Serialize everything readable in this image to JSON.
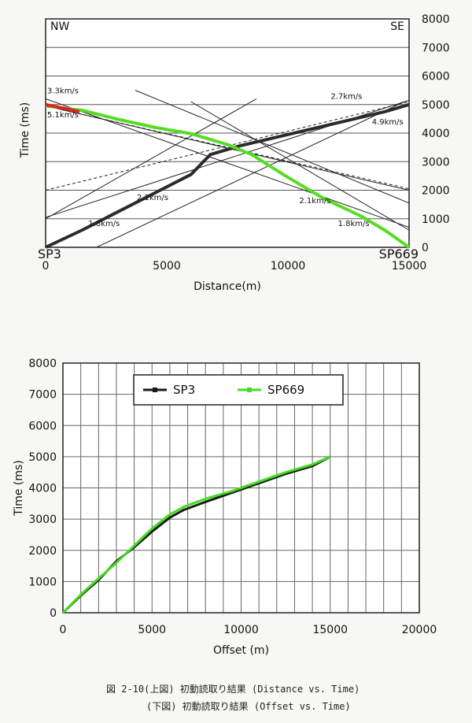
{
  "chart_data": [
    {
      "type": "line",
      "title": "",
      "xlabel": "Distance(m)",
      "ylabel": "Time (ms)",
      "xlim": [
        0,
        15000
      ],
      "ylim": [
        0,
        8000
      ],
      "x_ticks": [
        "0",
        "5000",
        "10000",
        "15000"
      ],
      "y_ticks_right": [
        "0",
        "1000",
        "2000",
        "3000",
        "4000",
        "5000",
        "6000",
        "7000",
        "8000"
      ],
      "corner_labels": {
        "top_left": "NW",
        "top_right": "SE"
      },
      "shot_labels": {
        "left": "SP3",
        "right": "SP669"
      },
      "grid": "horizontal",
      "series": [
        {
          "name": "SP3",
          "color": "#2b2b2b",
          "x": [
            0,
            1500,
            3000,
            4500,
            6000,
            6800,
            8000,
            9500,
            11000,
            12500,
            14000,
            15000
          ],
          "y": [
            0,
            600,
            1250,
            1900,
            2550,
            3250,
            3550,
            3850,
            4150,
            4450,
            4750,
            5000
          ]
        },
        {
          "name": "SP669",
          "color": "#55dd22",
          "x": [
            0,
            1500,
            3000,
            4500,
            6000,
            7500,
            8500,
            10000,
            11500,
            13000,
            14000,
            15000
          ],
          "y": [
            4950,
            4800,
            4480,
            4200,
            3980,
            3600,
            3250,
            2450,
            1700,
            1100,
            600,
            0
          ]
        },
        {
          "name": "SP669 (red segment)",
          "color": "#dd2222",
          "x": [
            0,
            1400
          ],
          "y": [
            5000,
            4750
          ]
        }
      ],
      "velocity_lines": [
        {
          "label": "3.3km/s",
          "style": "solid",
          "x": [
            0,
            15000
          ],
          "y": [
            5200,
            700
          ]
        },
        {
          "label": "5.1km/s",
          "style": "solid",
          "x": [
            0,
            15000
          ],
          "y": [
            4950,
            2000
          ]
        },
        {
          "label": "2.7km/s",
          "style": "solid",
          "x": [
            0,
            15000
          ],
          "y": [
            1050,
            5150
          ]
        },
        {
          "label": "4.9km/s",
          "style": "dashed",
          "x": [
            0,
            15000
          ],
          "y": [
            2000,
            5100
          ]
        },
        {
          "label": "2.1km/s",
          "style": "solid",
          "x": [
            3700,
            15000
          ],
          "y": [
            5500,
            1550
          ]
        },
        {
          "label": "2.1km/s",
          "style": "solid",
          "x": [
            0,
            8700
          ],
          "y": [
            1000,
            5200
          ]
        },
        {
          "label": "1.8km/s",
          "style": "solid",
          "x": [
            6000,
            15000
          ],
          "y": [
            5100,
            600
          ]
        },
        {
          "label": "1.8km/s",
          "style": "solid",
          "x": [
            2100,
            14800
          ],
          "y": [
            0,
            5100
          ]
        },
        {
          "label": "",
          "style": "dashed",
          "x": [
            0,
            15000
          ],
          "y": [
            4950,
            2050
          ]
        }
      ],
      "velocity_annotations": [
        {
          "text": "3.3km/s",
          "x": 0,
          "y": 5400
        },
        {
          "text": "5.1km/s",
          "x": 0,
          "y": 4550
        },
        {
          "text": "2.7km/s",
          "x": 11700,
          "y": 5200
        },
        {
          "text": "4.9km/s",
          "x": 13400,
          "y": 4300
        },
        {
          "text": "2.1km/s",
          "x": 3700,
          "y": 1650
        },
        {
          "text": "2.1km/s",
          "x": 10400,
          "y": 1550
        },
        {
          "text": "1.8km/s",
          "x": 1700,
          "y": 750
        },
        {
          "text": "1.8km/s",
          "x": 12000,
          "y": 750
        }
      ]
    },
    {
      "type": "line",
      "title": "",
      "xlabel": "Offset (m)",
      "ylabel": "Time (ms)",
      "xlim": [
        0,
        20000
      ],
      "ylim": [
        0,
        8000
      ],
      "x_ticks": [
        "0",
        "5000",
        "10000",
        "15000",
        "20000"
      ],
      "y_ticks": [
        "0",
        "1000",
        "2000",
        "3000",
        "4000",
        "5000",
        "6000",
        "7000",
        "8000"
      ],
      "grid": "both",
      "legend_position": "top-center",
      "series": [
        {
          "name": "SP3",
          "color": "#1a1a1a",
          "x": [
            0,
            1000,
            2000,
            3000,
            4000,
            5000,
            6000,
            6800,
            8000,
            9500,
            11000,
            12500,
            14000,
            15000
          ],
          "y": [
            0,
            550,
            1050,
            1650,
            2100,
            2600,
            3050,
            3300,
            3550,
            3850,
            4150,
            4450,
            4700,
            5000
          ]
        },
        {
          "name": "SP669",
          "color": "#44dd22",
          "x": [
            0,
            1000,
            2000,
            3000,
            4000,
            5000,
            6000,
            6800,
            8000,
            9500,
            11000,
            12500,
            14000,
            15000
          ],
          "y": [
            0,
            580,
            1100,
            1600,
            2150,
            2700,
            3150,
            3400,
            3650,
            3900,
            4200,
            4500,
            4750,
            5000
          ]
        }
      ]
    }
  ],
  "caption": {
    "line1": "図 2-10(上図)  初動読取り結果 (Distance vs. Time)",
    "line2": "(下図)  初動読取り結果 (Offset vs. Time)"
  }
}
